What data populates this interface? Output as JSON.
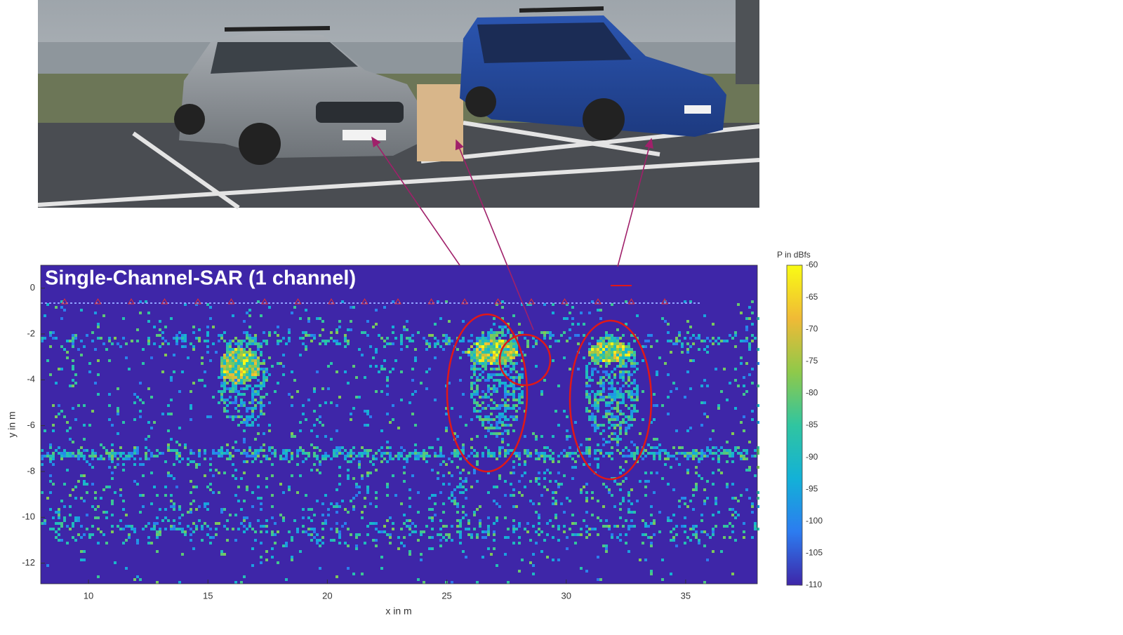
{
  "chart_data": {
    "type": "heatmap",
    "title": "Single-Channel-SAR (1 channel)",
    "x_label": "x in m",
    "y_label": "y in m",
    "xlim": [
      8,
      38
    ],
    "xticks": [
      10,
      15,
      20,
      25,
      30,
      35
    ],
    "ylim": [
      -12.9,
      1
    ],
    "yticks": [
      0,
      -2,
      -4,
      -6,
      -8,
      -10,
      -12
    ],
    "colorbar_label": "P in dBfs",
    "clim": [
      -110,
      -60
    ],
    "cticks": [
      -60,
      -65,
      -70,
      -75,
      -80,
      -85,
      -90,
      -95,
      -100,
      -105,
      -110
    ],
    "colormap": [
      "#3e26a8",
      "#2c7cf0",
      "#13b1d7",
      "#30c5a0",
      "#8fc94a",
      "#f0ba36",
      "#f9fb14"
    ]
  }
}
